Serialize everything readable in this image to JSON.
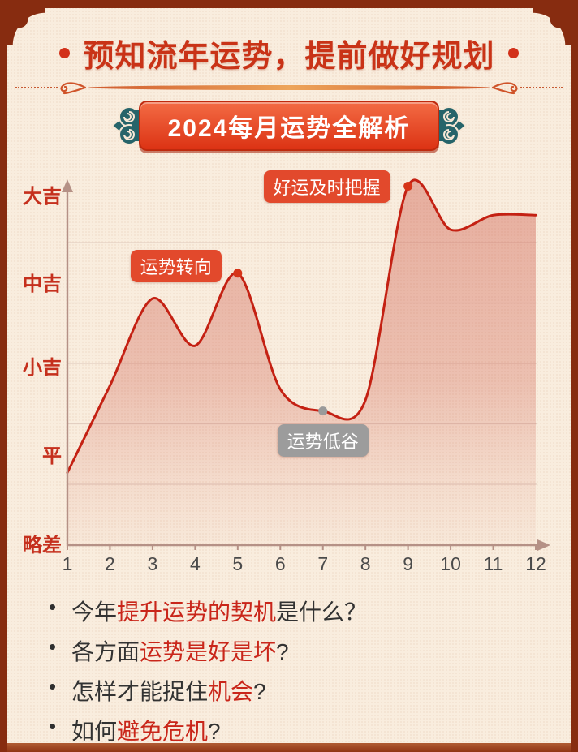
{
  "colors": {
    "background": "#f9edde",
    "frame": "#872c10",
    "accent_red": "#c93317",
    "badge_red": "#e2492c",
    "muted_gray": "#9c9c9c"
  },
  "header": {
    "title": "预知流年运势，提前做好规划"
  },
  "badge": {
    "label": "2024每月运势全解析"
  },
  "chart_data": {
    "type": "line",
    "title": "2024每月运势全解析",
    "x": [
      1,
      2,
      3,
      4,
      5,
      6,
      7,
      8,
      9,
      10,
      11,
      12
    ],
    "x_tick_labels": [
      "1",
      "2",
      "3",
      "4",
      "5",
      "6",
      "7",
      "8",
      "9",
      "10",
      "11",
      "12"
    ],
    "values": [
      20,
      44,
      68,
      55,
      75,
      43,
      37,
      40,
      99,
      87,
      91,
      91
    ],
    "y_tick_labels": [
      "大吉",
      "中吉",
      "小吉",
      "平",
      "略差"
    ],
    "ylim": [
      0,
      100
    ],
    "grid": true,
    "legend": "none",
    "xlabel": "",
    "ylabel": "",
    "line_color": "#c42113",
    "fill_color": "#cd5646",
    "axis_color": "#b59186",
    "grid_color": "#e3cfc1",
    "y_tick_color": "#c5301d",
    "x_tick_color": "#4a4a4a",
    "annotations": [
      {
        "label": "运势转向",
        "month": 5,
        "value": 75,
        "style": "emphasis",
        "dot_color": "#d63418"
      },
      {
        "label": "好运及时把握",
        "month": 9,
        "value": 99,
        "style": "emphasis",
        "dot_color": "#d63418"
      },
      {
        "label": "运势低谷",
        "month": 7,
        "value": 37,
        "style": "muted",
        "dot_color": "#9a9a9a"
      }
    ]
  },
  "questions": {
    "bullet": "•",
    "items": [
      {
        "segments": [
          {
            "text": "今年",
            "em": false
          },
          {
            "text": "提升运势的契机",
            "em": true
          },
          {
            "text": "是什么？",
            "em": false
          }
        ]
      },
      {
        "segments": [
          {
            "text": "各方面",
            "em": false
          },
          {
            "text": "运势是好是坏",
            "em": true
          },
          {
            "text": "?",
            "em": false
          }
        ]
      },
      {
        "segments": [
          {
            "text": "怎样才能捉住",
            "em": false
          },
          {
            "text": "机会",
            "em": true
          },
          {
            "text": "?",
            "em": false
          }
        ]
      },
      {
        "segments": [
          {
            "text": "如何",
            "em": false
          },
          {
            "text": "避免危机",
            "em": true
          },
          {
            "text": "?",
            "em": false
          }
        ]
      }
    ]
  }
}
